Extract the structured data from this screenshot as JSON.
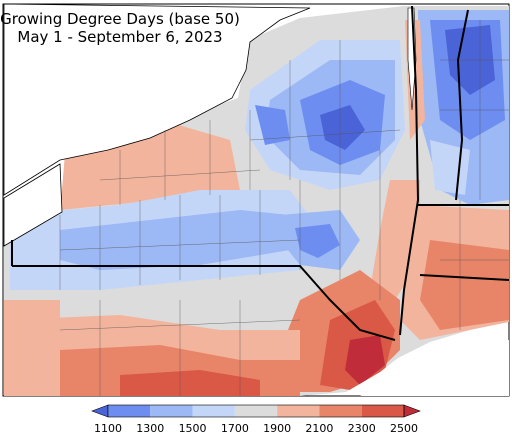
{
  "map": {
    "title": "Growing Degree Days (base 50)",
    "subtitle": "May 1 - September 6, 2023"
  },
  "legend": {
    "ticks": [
      "1100",
      "1300",
      "1500",
      "1700",
      "1900",
      "2100",
      "2300",
      "2500"
    ],
    "colors": [
      "#4a63d6",
      "#6d8ef0",
      "#9cb8f5",
      "#c4d6f7",
      "#dcdcdc",
      "#f2b49c",
      "#e88468",
      "#d95846",
      "#c02c3a"
    ]
  }
}
